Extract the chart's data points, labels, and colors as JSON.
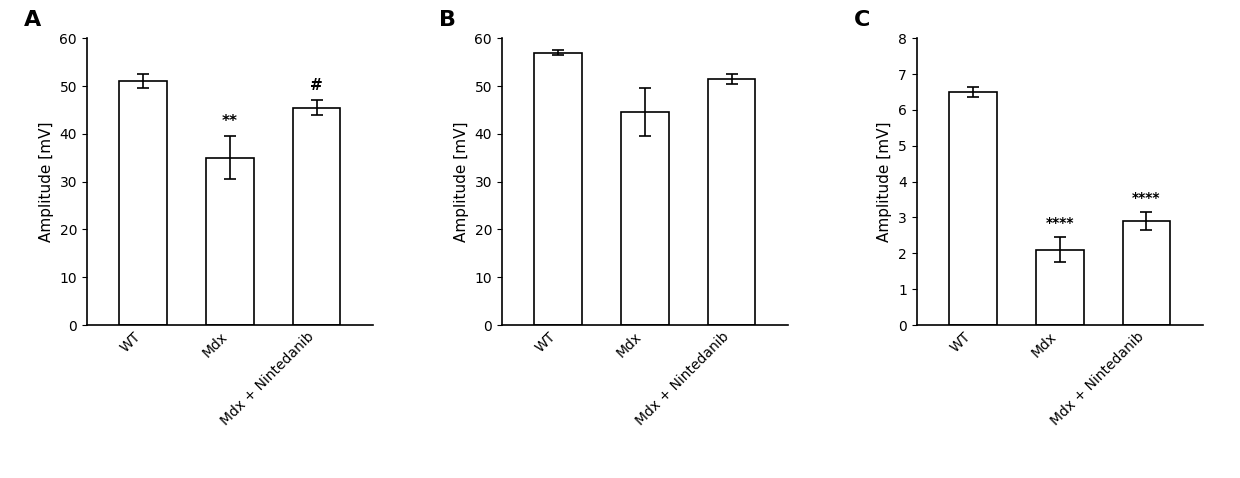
{
  "panels": [
    {
      "label": "A",
      "ylabel": "Amplitude [mV]",
      "ylim": [
        0,
        60
      ],
      "yticks": [
        0,
        10,
        20,
        30,
        40,
        50,
        60
      ],
      "categories": [
        "WT",
        "Mdx",
        "Mdx + Nintedanib"
      ],
      "values": [
        51.0,
        35.0,
        45.5
      ],
      "errors": [
        1.5,
        4.5,
        1.5
      ],
      "annotations": [
        "",
        "**",
        "#"
      ],
      "annot_fontsize": 11
    },
    {
      "label": "B",
      "ylabel": "Amplitude [mV]",
      "ylim": [
        0,
        60
      ],
      "yticks": [
        0,
        10,
        20,
        30,
        40,
        50,
        60
      ],
      "categories": [
        "WT",
        "Mdx",
        "Mdx + Nintedanib"
      ],
      "values": [
        57.0,
        44.5,
        51.5
      ],
      "errors": [
        0.5,
        5.0,
        1.0
      ],
      "annotations": [
        "",
        "",
        ""
      ],
      "annot_fontsize": 11
    },
    {
      "label": "C",
      "ylabel": "Amplitude [mV]",
      "ylim": [
        0,
        8
      ],
      "yticks": [
        0,
        1,
        2,
        3,
        4,
        5,
        6,
        7,
        8
      ],
      "categories": [
        "WT",
        "Mdx",
        "Mdx + Nintedanib"
      ],
      "values": [
        6.5,
        2.1,
        2.9
      ],
      "errors": [
        0.15,
        0.35,
        0.25
      ],
      "annotations": [
        "",
        "****",
        "****"
      ],
      "annot_fontsize": 10
    }
  ],
  "bar_color": "#ffffff",
  "bar_edgecolor": "#000000",
  "bar_linewidth": 1.2,
  "bar_width": 0.55,
  "label_fontsize": 16,
  "tick_fontsize": 10,
  "ylabel_fontsize": 11,
  "background_color": "#ffffff",
  "figure_width": 12.4,
  "figure_height": 4.78,
  "dpi": 100
}
